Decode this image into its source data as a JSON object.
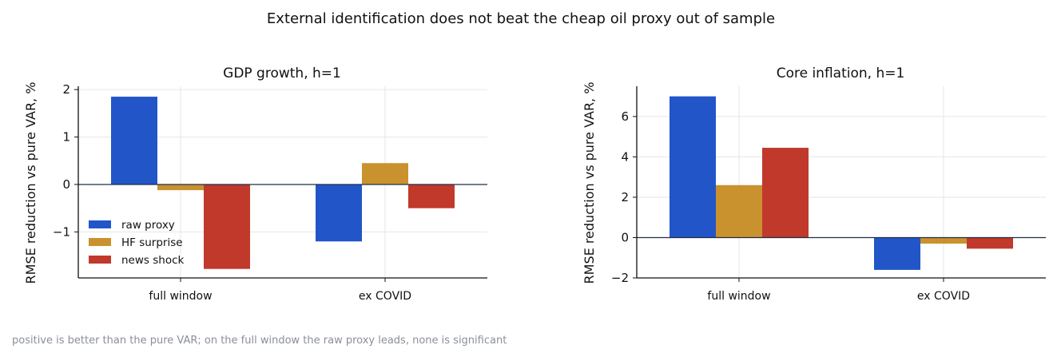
{
  "suptitle": "External identification does not beat the cheap oil proxy out of sample",
  "footnote": "positive is better than the pure VAR; on the full window the raw proxy leads, none is significant",
  "colors": {
    "raw proxy": "#2255c8",
    "HF surprise": "#c9922e",
    "news shock": "#c0392b"
  },
  "chart_data": [
    {
      "type": "bar",
      "title": "GDP growth, h=1",
      "ylabel": "RMSE reduction vs pure VAR, %",
      "categories": [
        "full window",
        "ex COVID"
      ],
      "series": [
        {
          "name": "raw proxy",
          "values": [
            1.85,
            -1.2
          ]
        },
        {
          "name": "HF surprise",
          "values": [
            -0.12,
            0.45
          ]
        },
        {
          "name": "news shock",
          "values": [
            -1.78,
            -0.5
          ]
        }
      ],
      "ylim": [
        -1.97,
        2.07
      ],
      "yticks": [
        -1,
        0,
        1,
        2
      ],
      "grid": true,
      "legend": "lower-left"
    },
    {
      "type": "bar",
      "title": "Core inflation, h=1",
      "ylabel": "RMSE reduction vs pure VAR, %",
      "categories": [
        "full window",
        "ex COVID"
      ],
      "series": [
        {
          "name": "raw proxy",
          "values": [
            7.0,
            -1.6
          ]
        },
        {
          "name": "HF surprise",
          "values": [
            2.6,
            -0.3
          ]
        },
        {
          "name": "news shock",
          "values": [
            4.45,
            -0.55
          ]
        }
      ],
      "ylim": [
        -2.0,
        7.5
      ],
      "yticks": [
        -2,
        0,
        2,
        4,
        6
      ],
      "grid": true,
      "legend": "none"
    }
  ]
}
